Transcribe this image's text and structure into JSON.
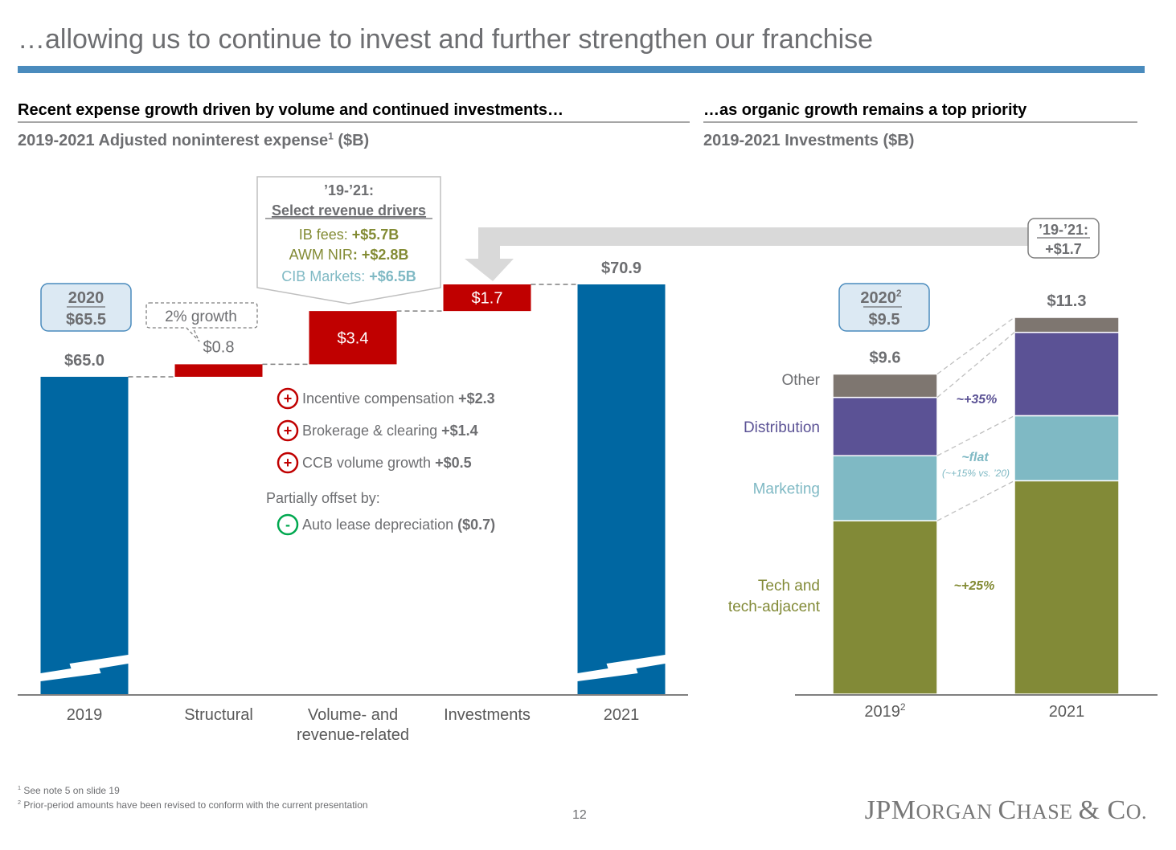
{
  "slide": {
    "title": "…allowing us to continue to invest and further strengthen our franchise",
    "page_number": "12",
    "logo": {
      "jp": "JP",
      "m": "M",
      "organ": "ORGAN ",
      "c": "C",
      "hase": "HASE ",
      "amp": "& ",
      "co_c": "C",
      "co_o": "O."
    },
    "footnotes": [
      {
        "mark": "1",
        "text": "See note 5 on slide 19"
      },
      {
        "mark": "2",
        "text": "Prior-period amounts have been revised to conform with the current presentation"
      }
    ]
  },
  "left": {
    "heading": "Recent expense growth driven by volume and continued investments…",
    "subheading": "2019-2021 Adjusted noninterest expense",
    "subheading_sup": "1",
    "subheading_unit": " ($B)",
    "callout_2020": {
      "year": "2020",
      "value": "$65.5"
    },
    "growth_callout": "2% growth",
    "revenue_box": {
      "period": "’19-’21:",
      "title": "Select revenue drivers",
      "items": [
        {
          "label": "IB fees: ",
          "value": "+$5.7B",
          "color": "#838b34"
        },
        {
          "label": "AWM NIR",
          "value": ": +$2.8B",
          "color": "#838b34"
        },
        {
          "label": "CIB Markets: ",
          "value": "+$6.5B",
          "color": "#7fb9c4"
        }
      ]
    },
    "drivers": [
      {
        "sign": "+",
        "label": "Incentive compensation ",
        "value": "+$2.3"
      },
      {
        "sign": "+",
        "label": "Brokerage & clearing ",
        "value": "+$1.4"
      },
      {
        "sign": "+",
        "label": "CCB volume growth ",
        "value": "+$0.5"
      }
    ],
    "offset_label": "Partially offset by:",
    "offsets": [
      {
        "sign": "-",
        "label": "Auto lease depreciation ",
        "value": "($0.7)"
      }
    ]
  },
  "right": {
    "heading": "…as organic growth remains a top priority",
    "subheading": "2019-2021 Investments ($B)",
    "callout_2020": {
      "year": "2020",
      "sup": "2",
      "value": "$9.5"
    },
    "delta_box": {
      "period": "’19-’21:",
      "value": "+$1.7"
    },
    "annotations": [
      {
        "text": "~+35%",
        "color": "#5b5295"
      },
      {
        "text": "~flat",
        "color": "#7fb9c4"
      },
      {
        "text": "(~+15% vs. ’20)",
        "color": "#7fb9c4"
      },
      {
        "text": "~+25%",
        "color": "#838b34"
      }
    ]
  },
  "chart_data": [
    {
      "type": "bar",
      "subtype": "waterfall",
      "title": "2019-2021 Adjusted noninterest expense ($B)",
      "categories": [
        "2019",
        "Structural",
        "Volume- and revenue-related",
        "Investments",
        "2021"
      ],
      "category_lines": [
        [
          "2019"
        ],
        [
          "Structural"
        ],
        [
          "Volume- and",
          "revenue-related"
        ],
        [
          "Investments"
        ],
        [
          "2021"
        ]
      ],
      "values": [
        65.0,
        0.8,
        3.4,
        1.7,
        70.9
      ],
      "kinds": [
        "total",
        "delta",
        "delta",
        "delta",
        "total"
      ],
      "data_labels": [
        "$65.0",
        "$0.8",
        "$3.4",
        "$1.7",
        "$70.9"
      ],
      "axis_break": true,
      "colors": {
        "total": "#0067a2",
        "delta": "#c00000"
      },
      "xlabel": "",
      "ylabel": ""
    },
    {
      "type": "bar",
      "subtype": "stacked",
      "title": "2019-2021 Investments ($B)",
      "categories": [
        "2019",
        "2021"
      ],
      "category_sups": [
        "2",
        ""
      ],
      "series": [
        {
          "name": "Tech and tech-adjacent",
          "label_lines": [
            "Tech and",
            "tech-adjacent"
          ],
          "color": "#828a37",
          "values": [
            5.2,
            6.4
          ]
        },
        {
          "name": "Marketing",
          "label_lines": [
            "Marketing"
          ],
          "color": "#7fb9c4",
          "values": [
            1.95,
            1.95
          ]
        },
        {
          "name": "Distribution",
          "label_lines": [
            "Distribution"
          ],
          "color": "#5b5295",
          "values": [
            1.75,
            2.5
          ]
        },
        {
          "name": "Other",
          "label_lines": [
            "Other"
          ],
          "color": "#7e7670",
          "values": [
            0.7,
            0.45
          ]
        }
      ],
      "totals": [
        9.6,
        11.3
      ],
      "total_labels": [
        "$9.6",
        "$11.3"
      ],
      "legend": "left",
      "xlabel": "",
      "ylabel": ""
    }
  ]
}
